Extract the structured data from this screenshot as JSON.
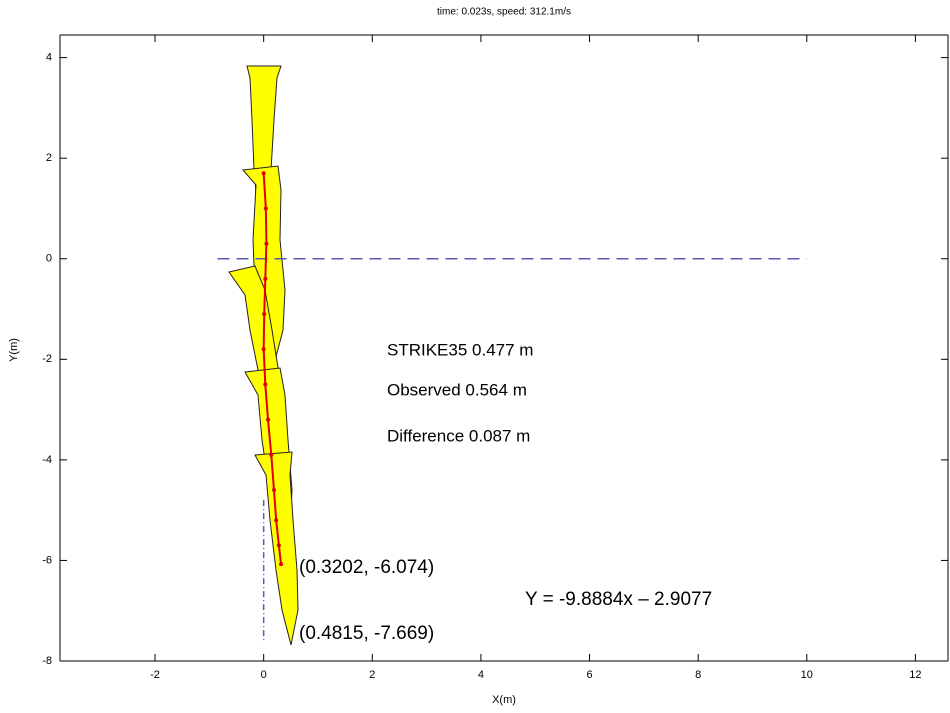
{
  "chart_data": {
    "type": "line",
    "title": "time:  0.023s,  speed:  312.1m/s",
    "xlabel": "X(m)",
    "ylabel": "Y(m)",
    "xlim": [
      -3.75,
      12.6
    ],
    "ylim": [
      -8,
      4.45
    ],
    "xticks": [
      -2,
      0,
      2,
      4,
      6,
      8,
      10,
      12
    ],
    "yticks": [
      -8,
      -6,
      -4,
      -2,
      0,
      2,
      4
    ],
    "series": [
      {
        "color": "#e00000",
        "x": [
          0.0,
          0.04,
          0.05,
          0.03,
          0.01,
          0.0,
          0.03,
          0.08,
          0.14,
          0.19,
          0.23,
          0.28,
          0.32
        ],
        "y": [
          1.7,
          1.0,
          0.3,
          -0.4,
          -1.1,
          -1.8,
          -2.5,
          -3.2,
          -3.9,
          -4.6,
          -5.2,
          -5.7,
          -6.074
        ]
      }
    ],
    "reference_lines": [
      {
        "color": "#5a5ab4",
        "dash": "12 7",
        "x": [
          -0.85,
          10
        ],
        "y": [
          0,
          0
        ]
      },
      {
        "color": "#5a5ab4",
        "dash": "6 3 1 3",
        "x": [
          0,
          0
        ],
        "y": [
          -4.8,
          -7.6
        ]
      }
    ],
    "annotations": [
      "STRIKE35 0.477 m",
      "Observed 0.564 m",
      "Difference 0.087 m",
      "(0.3202, -6.074)",
      "Y = -9.8884x – 2.9077",
      "(0.4815, -7.669)"
    ]
  }
}
